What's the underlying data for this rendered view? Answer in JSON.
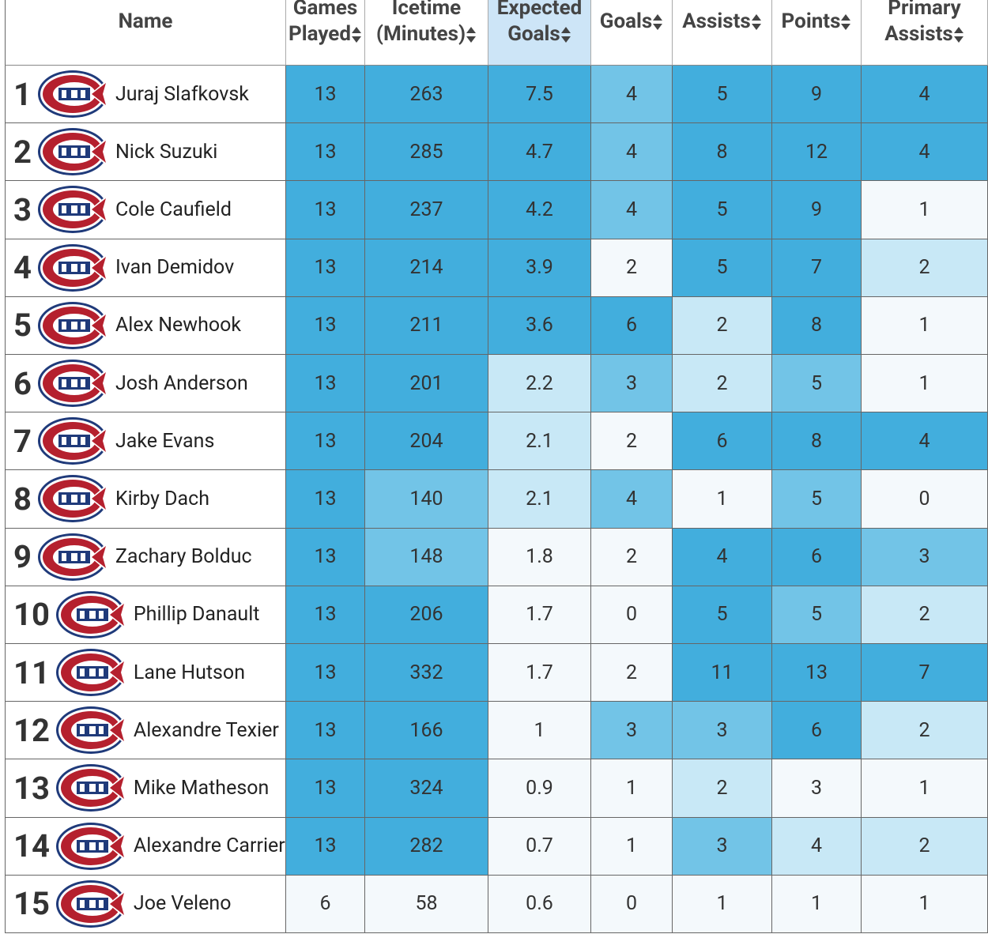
{
  "table": {
    "columns": [
      "Name",
      "Games Played",
      "Icetime (Minutes)",
      "Expected Goals",
      "Goals",
      "Assists",
      "Points",
      "Primary Assists"
    ],
    "sorted_header_color": "#cde5f7",
    "rows": [
      {
        "rank": 1,
        "name": "Juraj Slafkovsk",
        "stats": [
          13,
          263,
          7.5,
          4,
          5,
          9,
          4
        ],
        "colors": [
          "#42aedd",
          "#42aedd",
          "#42aedd",
          "#72c4e7",
          "#42aedd",
          "#42aedd",
          "#42aedd"
        ]
      },
      {
        "rank": 2,
        "name": "Nick Suzuki",
        "stats": [
          13,
          285,
          4.7,
          4,
          8,
          12,
          4
        ],
        "colors": [
          "#42aedd",
          "#42aedd",
          "#42aedd",
          "#72c4e7",
          "#42aedd",
          "#42aedd",
          "#42aedd"
        ]
      },
      {
        "rank": 3,
        "name": "Cole Caufield",
        "stats": [
          13,
          237,
          4.2,
          4,
          5,
          9,
          1
        ],
        "colors": [
          "#42aedd",
          "#42aedd",
          "#42aedd",
          "#72c4e7",
          "#42aedd",
          "#42aedd",
          "#f4f9fc"
        ]
      },
      {
        "rank": 4,
        "name": "Ivan Demidov",
        "stats": [
          13,
          214,
          3.9,
          2,
          5,
          7,
          2
        ],
        "colors": [
          "#42aedd",
          "#42aedd",
          "#42aedd",
          "#f4f9fc",
          "#42aedd",
          "#42aedd",
          "#c8e8f6"
        ]
      },
      {
        "rank": 5,
        "name": "Alex Newhook",
        "stats": [
          13,
          211,
          3.6,
          6,
          2,
          8,
          1
        ],
        "colors": [
          "#42aedd",
          "#42aedd",
          "#42aedd",
          "#42aedd",
          "#c8e8f6",
          "#42aedd",
          "#f4f9fc"
        ]
      },
      {
        "rank": 6,
        "name": "Josh Anderson",
        "stats": [
          13,
          201,
          2.2,
          3,
          2,
          5,
          1
        ],
        "colors": [
          "#42aedd",
          "#42aedd",
          "#c8e8f6",
          "#72c4e7",
          "#c8e8f6",
          "#72c4e7",
          "#f4f9fc"
        ]
      },
      {
        "rank": 7,
        "name": "Jake Evans",
        "stats": [
          13,
          204,
          2.1,
          2,
          6,
          8,
          4
        ],
        "colors": [
          "#42aedd",
          "#42aedd",
          "#c8e8f6",
          "#f4f9fc",
          "#42aedd",
          "#42aedd",
          "#42aedd"
        ]
      },
      {
        "rank": 8,
        "name": "Kirby Dach",
        "stats": [
          13,
          140,
          2.1,
          4,
          1,
          5,
          0
        ],
        "colors": [
          "#42aedd",
          "#72c4e7",
          "#c8e8f6",
          "#72c4e7",
          "#f4f9fc",
          "#72c4e7",
          "#f4f9fc"
        ]
      },
      {
        "rank": 9,
        "name": "Zachary Bolduc",
        "stats": [
          13,
          148,
          1.8,
          2,
          4,
          6,
          3
        ],
        "colors": [
          "#42aedd",
          "#72c4e7",
          "#f4f9fc",
          "#f4f9fc",
          "#42aedd",
          "#42aedd",
          "#72c4e7"
        ]
      },
      {
        "rank": 10,
        "name": "Phillip Danault",
        "stats": [
          13,
          206,
          1.7,
          0,
          5,
          5,
          2
        ],
        "colors": [
          "#42aedd",
          "#42aedd",
          "#f4f9fc",
          "#f4f9fc",
          "#42aedd",
          "#72c4e7",
          "#c8e8f6"
        ]
      },
      {
        "rank": 11,
        "name": "Lane Hutson",
        "stats": [
          13,
          332,
          1.7,
          2,
          11,
          13,
          7
        ],
        "colors": [
          "#42aedd",
          "#42aedd",
          "#f4f9fc",
          "#f4f9fc",
          "#42aedd",
          "#42aedd",
          "#42aedd"
        ]
      },
      {
        "rank": 12,
        "name": "Alexandre Texier",
        "stats": [
          13,
          166,
          1,
          3,
          3,
          6,
          2
        ],
        "colors": [
          "#42aedd",
          "#42aedd",
          "#f4f9fc",
          "#72c4e7",
          "#72c4e7",
          "#42aedd",
          "#c8e8f6"
        ]
      },
      {
        "rank": 13,
        "name": "Mike Matheson",
        "stats": [
          13,
          324,
          0.9,
          1,
          2,
          3,
          1
        ],
        "colors": [
          "#42aedd",
          "#42aedd",
          "#f4f9fc",
          "#f4f9fc",
          "#c8e8f6",
          "#f4f9fc",
          "#f4f9fc"
        ]
      },
      {
        "rank": 14,
        "name": "Alexandre Carrier",
        "stats": [
          13,
          282,
          0.7,
          1,
          3,
          4,
          2
        ],
        "colors": [
          "#42aedd",
          "#42aedd",
          "#f4f9fc",
          "#f4f9fc",
          "#72c4e7",
          "#c8e8f6",
          "#c8e8f6"
        ]
      },
      {
        "rank": 15,
        "name": "Joe Veleno",
        "stats": [
          6,
          58,
          0.6,
          0,
          1,
          1,
          1
        ],
        "colors": [
          "#f4f9fc",
          "#f4f9fc",
          "#f4f9fc",
          "#f4f9fc",
          "#f4f9fc",
          "#f4f9fc",
          "#f4f9fc"
        ]
      }
    ]
  }
}
